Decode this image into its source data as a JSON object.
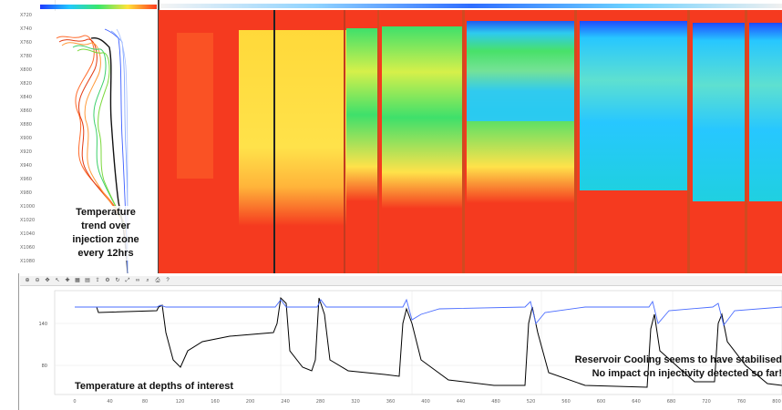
{
  "depth_ticks": [
    "X720",
    "X740",
    "X760",
    "X780",
    "X800",
    "X820",
    "X840",
    "X860",
    "X880",
    "X900",
    "X920",
    "X940",
    "X960",
    "X980",
    "X1000",
    "X1020",
    "X1040",
    "X1060",
    "X1080"
  ],
  "trend_label": {
    "line1": "Temperature",
    "line2": "trend over",
    "line3": "injection zone",
    "line4": "every 12hrs"
  },
  "bottom_label": "Temperature at depths of interest",
  "cooling_label": {
    "line1": "Reservoir Cooling seems to have stabilised",
    "line2": "No impact on injectivity detected so far!"
  },
  "toolbar_icons": [
    "zoom-in-icon",
    "zoom-out-icon",
    "pan-icon",
    "cursor-icon",
    "marker-icon",
    "grid-icon",
    "table-icon",
    "export-icon",
    "settings-icon",
    "refresh-icon",
    "fit-icon",
    "link-icon",
    "search-icon",
    "print-icon",
    "help-icon"
  ],
  "bottom_axis_ticks": [
    "0",
    "40",
    "80",
    "120",
    "160",
    "200",
    "240",
    "280",
    "320",
    "360",
    "400",
    "440",
    "480",
    "520",
    "560",
    "600",
    "640",
    "680",
    "720",
    "760",
    "800"
  ],
  "colors": {
    "heatmap_hot": "#f53a1f",
    "heatmap_warm": "#ffd93a",
    "heatmap_mid": "#3ee06b",
    "heatmap_cool": "#27c7ff",
    "heatmap_cold": "#1f4bff",
    "blue_trace": "#4a6cff",
    "black_trace": "#000000"
  }
}
